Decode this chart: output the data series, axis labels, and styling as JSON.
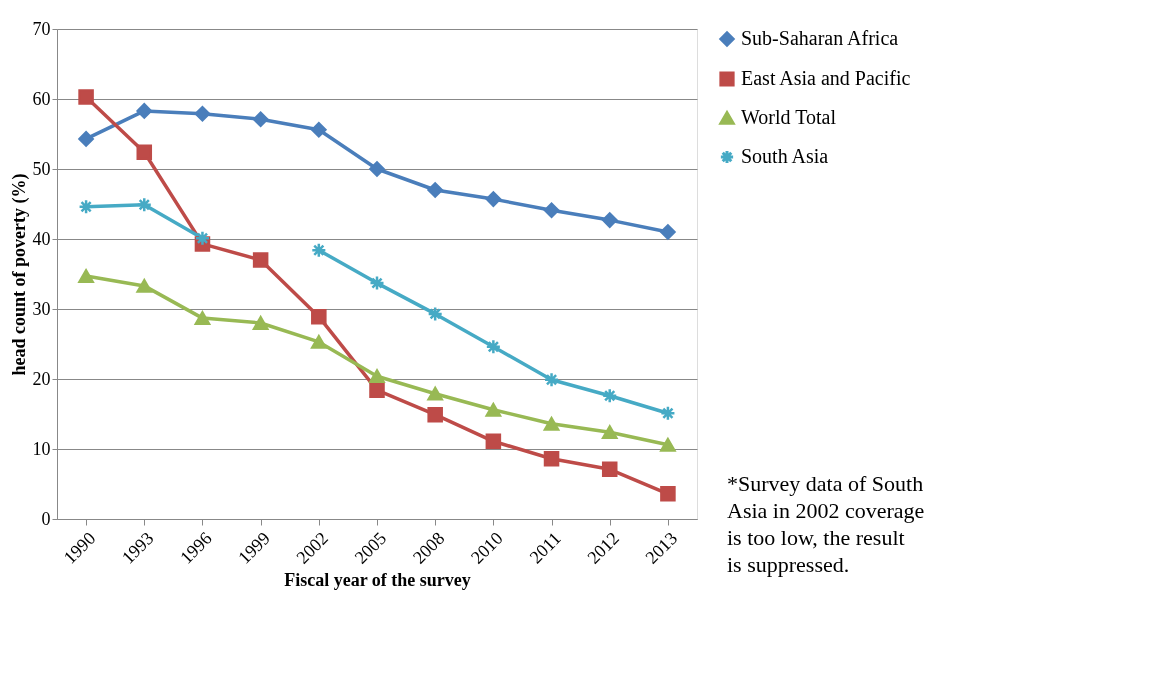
{
  "chart_data": {
    "type": "line",
    "xlabel": "Fiscal year of the survey",
    "ylabel": "head count of poverty (%)",
    "categories": [
      "1990",
      "1993",
      "1996",
      "1999",
      "2002",
      "2005",
      "2008",
      "2010",
      "2011",
      "2012",
      "2013"
    ],
    "series": [
      {
        "name": "Sub-Saharan Africa",
        "color": "#4a7ebb",
        "marker": "diamond",
        "values": [
          54.3,
          58.3,
          57.9,
          57.1,
          55.6,
          50.0,
          47.0,
          45.7,
          44.1,
          42.7,
          41.0
        ]
      },
      {
        "name": "East Asia and Pacific",
        "color": "#be4b48",
        "marker": "square",
        "values": [
          60.3,
          52.4,
          39.3,
          37.0,
          28.9,
          18.4,
          14.9,
          11.1,
          8.6,
          7.1,
          3.6
        ]
      },
      {
        "name": "World Total",
        "color": "#98b954",
        "marker": "triangle",
        "values": [
          34.7,
          33.3,
          28.7,
          28.0,
          25.3,
          20.4,
          17.9,
          15.6,
          13.6,
          12.4,
          10.6
        ]
      },
      {
        "name": "South Asia",
        "color": "#46aac5",
        "marker": "cross",
        "values": [
          44.6,
          44.9,
          40.1,
          null,
          38.4,
          33.7,
          29.3,
          24.6,
          19.9,
          17.6,
          15.1
        ]
      }
    ],
    "ylim": [
      0,
      70
    ],
    "yticks": [
      0,
      10,
      20,
      30,
      40,
      50,
      60,
      70
    ],
    "grid": "y",
    "legend": "right",
    "annotations": [
      "*Survey data of South Asia in 2002 coverage is too low, the result is suppressed."
    ]
  }
}
